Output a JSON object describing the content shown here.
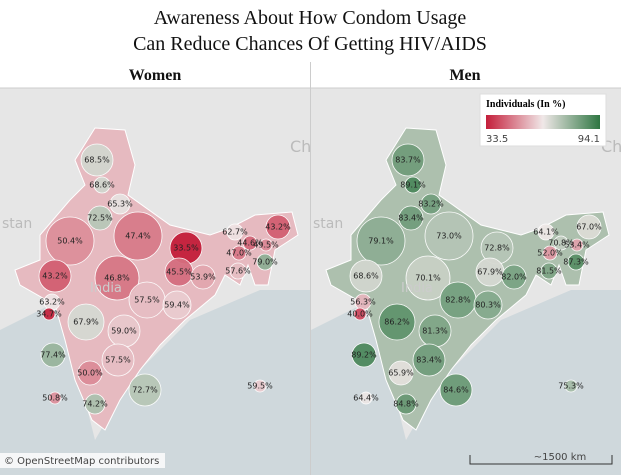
{
  "title": [
    "Awareness About How Condom Usage",
    "Can Reduce Chances Of Getting HIV/AIDS"
  ],
  "panels": [
    {
      "name": "Women",
      "labels": [
        "68.5%",
        "68.6%",
        "65.3%",
        "72.5%",
        "50.4%",
        "47.4%",
        "33.5%",
        "62.7%",
        "43.2%",
        "44.6%",
        "49.5%",
        "47.0%",
        "45.5%",
        "53.9%",
        "57.6%",
        "79.0%",
        "43.2%",
        "46.8%",
        "63.2%",
        "34.7%",
        "57.5%",
        "59.4%",
        "67.9%",
        "59.0%",
        "57.5%",
        "77.4%",
        "50.0%",
        "72.7%",
        "59.5%",
        "50.8%",
        "74.2%"
      ]
    },
    {
      "name": "Men",
      "labels": [
        "83.7%",
        "89.1%",
        "83.2%",
        "83.4%",
        "79.1%",
        "73.0%",
        "72.8%",
        "64.1%",
        "67.0%",
        "70.8%",
        "53.4%",
        "52.0%",
        "67.9%",
        "82.0%",
        "81.5%",
        "87.3%",
        "68.6%",
        "70.1%",
        "56.3%",
        "40.0%",
        "82.8%",
        "80.3%",
        "86.2%",
        "81.3%",
        "83.4%",
        "89.2%",
        "65.9%",
        "84.6%",
        "75.3%",
        "64.4%",
        "84.8%"
      ]
    }
  ],
  "legend": {
    "title": "Individuals (In %)",
    "min": 33.5,
    "max": 94.1
  },
  "map_labels": [
    "stan",
    "Ch",
    "India"
  ],
  "attribution": "© OpenStreetMap contributors",
  "scale": "~1500 km"
}
